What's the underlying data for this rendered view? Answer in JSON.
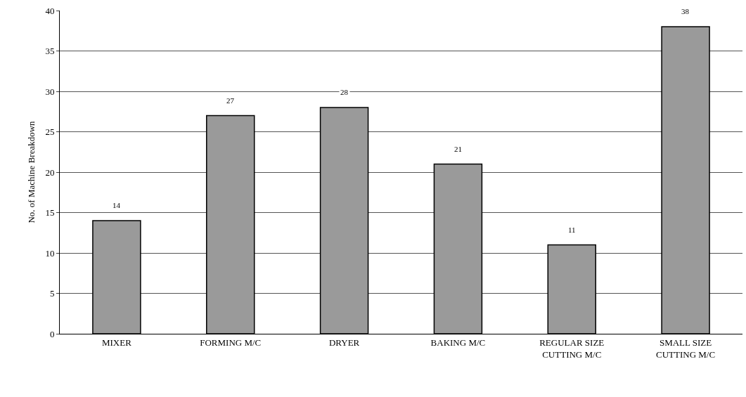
{
  "chart_data": {
    "type": "bar",
    "ylabel": "No. of Machine Breakdown",
    "categories": [
      "MIXER",
      "FORMING M/C",
      "DRYER",
      "BAKING M/C",
      "REGULAR SIZE CUTTING M/C",
      "SMALL SIZE CUTTING M/C"
    ],
    "values": [
      14,
      27,
      28,
      21,
      11,
      38
    ],
    "color": "#9a9a9a",
    "ylim": [
      0,
      40
    ],
    "yticks": [
      0,
      5,
      10,
      15,
      20,
      25,
      30,
      35,
      40
    ],
    "grid": "y",
    "data_labels": true
  }
}
